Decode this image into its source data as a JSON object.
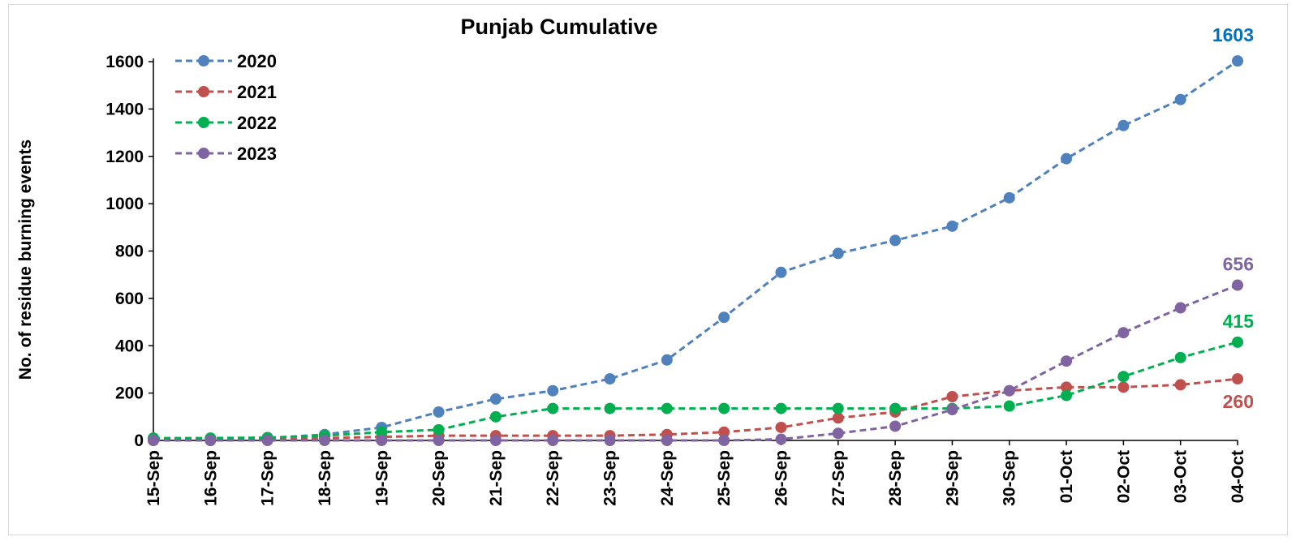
{
  "chart_data": {
    "type": "line",
    "title": "Punjab Cumulative",
    "xlabel": "",
    "ylabel": "No. of residue burning events",
    "ylim": [
      0,
      1600
    ],
    "yticks": [
      0,
      200,
      400,
      600,
      800,
      1000,
      1200,
      1400,
      1600
    ],
    "grid": false,
    "legend": "top-left",
    "categories": [
      "15-Sep",
      "16-Sep",
      "17-Sep",
      "18-Sep",
      "19-Sep",
      "20-Sep",
      "21-Sep",
      "22-Sep",
      "23-Sep",
      "24-Sep",
      "25-Sep",
      "26-Sep",
      "27-Sep",
      "28-Sep",
      "29-Sep",
      "30-Sep",
      "01-Oct",
      "02-Oct",
      "03-Oct",
      "04-Oct"
    ],
    "series": [
      {
        "name": "2020",
        "color": "#4f81bd",
        "end_label_color": "#0070c0",
        "values": [
          5,
          8,
          10,
          25,
          55,
          120,
          175,
          210,
          260,
          340,
          520,
          710,
          790,
          845,
          905,
          1025,
          1190,
          1330,
          1440,
          1603
        ],
        "end_label": "1603"
      },
      {
        "name": "2021",
        "color": "#c0504d",
        "end_label_color": "#c0504d",
        "values": [
          0,
          0,
          2,
          10,
          15,
          20,
          20,
          20,
          20,
          25,
          35,
          55,
          95,
          120,
          185,
          210,
          225,
          225,
          235,
          260
        ],
        "end_label": "260"
      },
      {
        "name": "2022",
        "color": "#00b050",
        "end_label_color": "#00b050",
        "values": [
          10,
          10,
          12,
          20,
          35,
          45,
          100,
          135,
          135,
          135,
          135,
          135,
          135,
          135,
          135,
          145,
          190,
          270,
          350,
          415
        ],
        "end_label": "415"
      },
      {
        "name": "2023",
        "color": "#8064a2",
        "end_label_color": "#8064a2",
        "values": [
          0,
          0,
          0,
          0,
          0,
          0,
          0,
          0,
          0,
          0,
          0,
          5,
          30,
          60,
          130,
          210,
          335,
          455,
          560,
          656
        ],
        "end_label": "656"
      }
    ]
  }
}
